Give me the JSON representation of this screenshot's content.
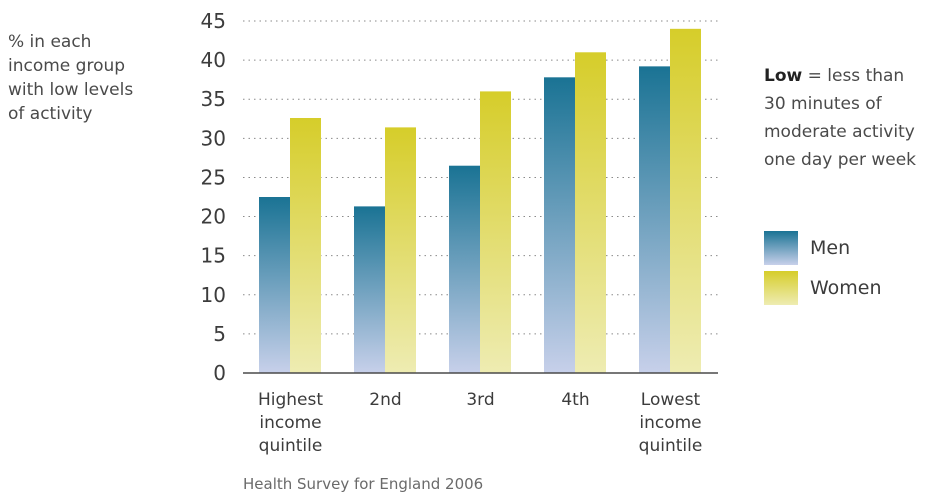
{
  "chart_data": {
    "type": "bar",
    "title": "",
    "ylabel_lines": [
      "% in each",
      "income group",
      "with low levels",
      "of activity"
    ],
    "xlabel": "",
    "categories": [
      [
        "Highest",
        "income",
        "quintile"
      ],
      [
        "2nd"
      ],
      [
        "3rd"
      ],
      [
        "4th"
      ],
      [
        "Lowest",
        "income",
        "quintile"
      ]
    ],
    "series": [
      {
        "name": "Men",
        "values": [
          22.5,
          21.3,
          26.5,
          37.8,
          39.2
        ]
      },
      {
        "name": "Women",
        "values": [
          32.6,
          31.4,
          36.0,
          41.0,
          44.0
        ]
      }
    ],
    "ylim": [
      0,
      45
    ],
    "yticks": [
      "0",
      "5",
      "10",
      "15",
      "20",
      "25",
      "30",
      "35",
      "40",
      "45"
    ],
    "grid": "horizontal dotted",
    "legend_placement": "right",
    "colors": {
      "men_top": "#1a7394",
      "men_bottom": "#c7d0ea",
      "women_top": "#d6cd2a",
      "women_bottom": "#eeecb2"
    }
  },
  "note": {
    "lines": [
      {
        "bold": "Low",
        "text": " = less than"
      },
      {
        "bold": "",
        "text": "30 minutes of"
      },
      {
        "bold": "",
        "text": "moderate activity"
      },
      {
        "bold": "",
        "text": "one day per week"
      }
    ]
  },
  "legend": {
    "men_label": "Men",
    "women_label": "Women"
  },
  "source": "Health Survey for England 2006"
}
